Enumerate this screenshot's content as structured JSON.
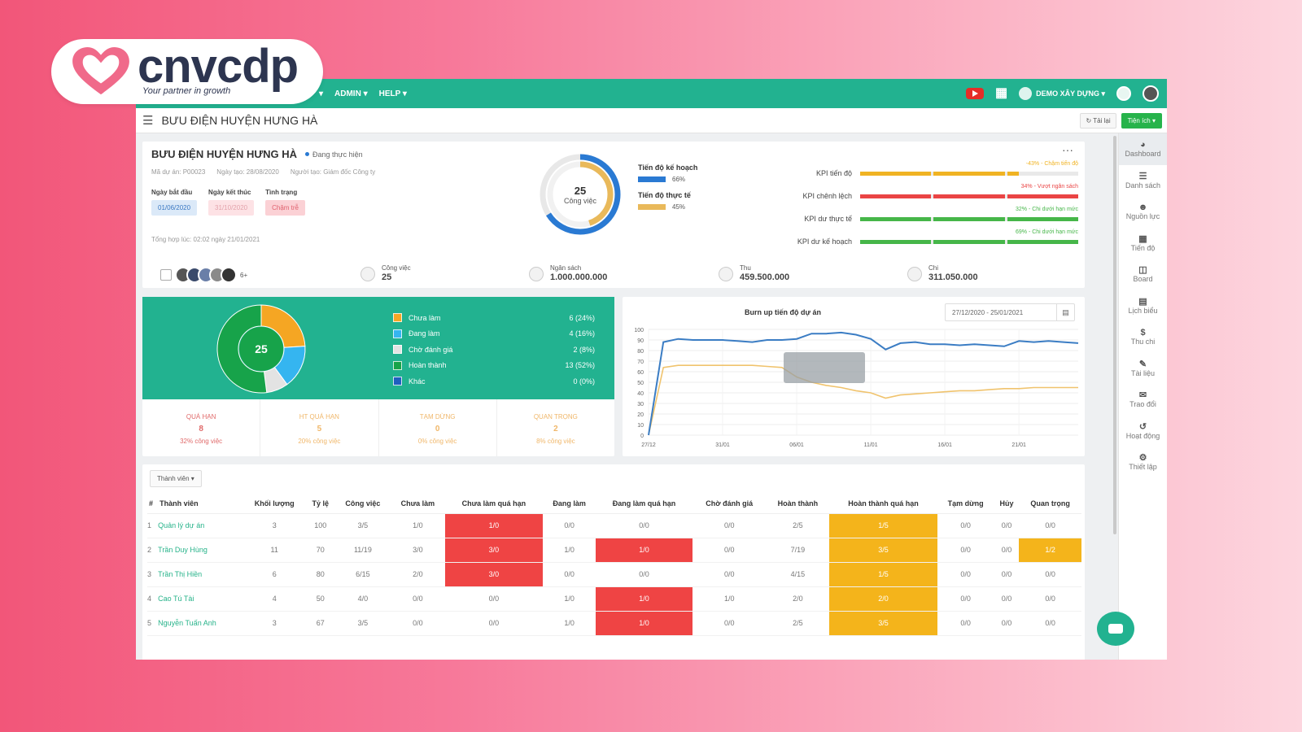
{
  "brand": {
    "name": "cnvcdp",
    "tagline": "Your partner in growth",
    "heart_color": "#f06a8a"
  },
  "topnav": {
    "items": [
      "▾",
      "ADMIN ▾",
      "HELP ▾"
    ],
    "project": "DEMO XÂY DỰNG ▾",
    "icons": [
      "youtube-icon",
      "apps-grid-icon",
      "project-icon",
      "globe-icon",
      "user-avatar-icon"
    ]
  },
  "subbar": {
    "title": "BƯU ĐIỆN HUYỆN HƯNG HÀ",
    "reload": "↻ Tải lại",
    "utility": "Tiện ích ▾"
  },
  "sidebar": [
    "Dashboard",
    "Danh sách",
    "Nguồn lực",
    "Tiến độ",
    "Board",
    "Lịch biểu",
    "Thu chi",
    "Tài liệu",
    "Trao đổi",
    "Hoạt động",
    "Thiết lập"
  ],
  "project": {
    "title": "BƯU ĐIỆN HUYỆN HƯNG HÀ",
    "status": "Đang thực hiện",
    "code": "Mã dự án: P00023",
    "created": "Ngày tạo: 28/08/2020",
    "creator": "Người tạo: Giám đốc Công ty",
    "start_label": "Ngày bắt đầu",
    "start": "01/06/2020",
    "end_label": "Ngày kết thúc",
    "end": "31/10/2020",
    "state_label": "Tình trạng",
    "state": "Chậm trễ",
    "synth": "Tổng hợp lúc: 02:02 ngày 21/01/2021",
    "tasks_total": "25",
    "tasks_unit": "Công việc",
    "plan_label": "Tiến độ kế hoạch",
    "plan_pct": "66%",
    "plan_value": 0.66,
    "actual_label": "Tiến độ thực tế",
    "actual_pct": "45%",
    "actual_value": 0.45,
    "plan_color": "#2a7ad3",
    "actual_color": "#e9b95a"
  },
  "kpis": [
    {
      "label": "KPI tiến độ",
      "note": "-43% - Chậm tiến độ",
      "color": "#f0b323",
      "value": 0.72
    },
    {
      "label": "KPI chênh lệch",
      "note": "34% - Vượt ngân sách",
      "color": "#ea4444",
      "value": 1.0
    },
    {
      "label": "KPI dư thực tế",
      "note": "32% - Chi dưới hạn mức",
      "color": "#46b649",
      "value": 1.0
    },
    {
      "label": "KPI dư kế hoạch",
      "note": "69% - Chi dưới hạn mức",
      "color": "#46b649",
      "value": 1.0
    }
  ],
  "stats": {
    "more": "6+",
    "tasks_label": "Công việc",
    "tasks_value": "25",
    "budget_label": "Ngân sách",
    "budget_value": "1.000.000.000",
    "income_label": "Thu",
    "income_value": "459.500.000",
    "expense_label": "Chi",
    "expense_value": "311.050.000"
  },
  "task_summary": {
    "total": "25",
    "legend": [
      {
        "label": "Chưa làm",
        "value": "6",
        "pct": "(24%)",
        "count": 6,
        "color": "#f5a623"
      },
      {
        "label": "Đang làm",
        "value": "4",
        "pct": "(16%)",
        "count": 4,
        "color": "#35b5f0"
      },
      {
        "label": "Chờ đánh giá",
        "value": "2",
        "pct": "(8%)",
        "count": 2,
        "color": "#e3e3e3"
      },
      {
        "label": "Hoàn thành",
        "value": "13",
        "pct": "(52%)",
        "count": 13,
        "color": "#17a34a"
      },
      {
        "label": "Khác",
        "value": "0",
        "pct": "(0%)",
        "count": 0,
        "color": "#1f5fbf"
      }
    ],
    "footer": [
      {
        "label": "QUÁ HẠN",
        "value": "8",
        "sub": "32% công việc",
        "color": "#e06a6a"
      },
      {
        "label": "HT QUÁ HẠN",
        "value": "5",
        "sub": "20% công việc",
        "color": "#f0b76a"
      },
      {
        "label": "TẠM DỪNG",
        "value": "0",
        "sub": "0% công việc",
        "color": "#f0b76a"
      },
      {
        "label": "QUAN TRỌNG",
        "value": "2",
        "sub": "8% công việc",
        "color": "#f0b76a"
      }
    ]
  },
  "burnup": {
    "title": "Burn up tiến độ dự án",
    "range": "27/12/2020 - 25/01/2021",
    "yticks": [
      "100",
      "90",
      "80",
      "70",
      "60",
      "50",
      "40",
      "30",
      "20",
      "10",
      "0"
    ],
    "xticks": [
      "27/12",
      "31/01",
      "06/01",
      "11/01",
      "16/01",
      "21/01"
    ]
  },
  "chart_data": {
    "type": "line",
    "title": "Burn up tiến độ dự án",
    "ylim": [
      0,
      100
    ],
    "x": [
      "27/12",
      "28/12",
      "29/12",
      "30/12",
      "31/12",
      "01/01",
      "02/01",
      "03/01",
      "04/01",
      "05/01",
      "06/01",
      "07/01",
      "08/01",
      "09/01",
      "10/01",
      "11/01",
      "12/01",
      "13/01",
      "14/01",
      "15/01",
      "16/01",
      "17/01",
      "18/01",
      "19/01",
      "20/01",
      "21/01",
      "22/01",
      "23/01",
      "24/01",
      "25/01"
    ],
    "series": [
      {
        "name": "",
        "color": "#3b7dc4",
        "values": [
          0,
          88,
          91,
          90,
          90,
          90,
          89,
          88,
          90,
          90,
          91,
          96,
          96,
          97,
          95,
          91,
          81,
          87,
          88,
          86,
          86,
          85,
          86,
          85,
          84,
          89,
          88,
          89,
          88,
          87
        ]
      },
      {
        "name": "",
        "color": "#f0c36d",
        "values": [
          0,
          64,
          66,
          66,
          66,
          66,
          66,
          66,
          65,
          64,
          55,
          50,
          47,
          45,
          42,
          40,
          35,
          38,
          39,
          40,
          41,
          42,
          42,
          43,
          44,
          44,
          45,
          45,
          45,
          45
        ]
      }
    ]
  },
  "members": {
    "filter": "Thành viên ▾",
    "headers": [
      "#",
      "Thành viên",
      "Khối lượng",
      "Tỷ lệ",
      "Công việc",
      "Chưa làm",
      "Chưa làm quá hạn",
      "Đang làm",
      "Đang làm quá hạn",
      "Chờ đánh giá",
      "Hoàn thành",
      "Hoàn thành quá hạn",
      "Tạm dừng",
      "Hủy",
      "Quan trọng"
    ],
    "rows": [
      [
        "1",
        "Quản lý dự án",
        "3",
        "100",
        "3/5",
        "1/0",
        "1/0",
        "0/0",
        "0/0",
        "0/0",
        "2/5",
        "1/5",
        "0/0",
        "0/0",
        "0/0"
      ],
      [
        "2",
        "Trần Duy Hùng",
        "11",
        "70",
        "11/19",
        "3/0",
        "3/0",
        "1/0",
        "1/0",
        "0/0",
        "7/19",
        "3/5",
        "0/0",
        "0/0",
        "1/2"
      ],
      [
        "3",
        "Trần Thị Hiền",
        "6",
        "80",
        "6/15",
        "2/0",
        "3/0",
        "0/0",
        "0/0",
        "0/0",
        "4/15",
        "1/5",
        "0/0",
        "0/0",
        "0/0"
      ],
      [
        "4",
        "Cao Tú Tài",
        "4",
        "50",
        "4/0",
        "0/0",
        "0/0",
        "1/0",
        "1/0",
        "1/0",
        "2/0",
        "2/0",
        "0/0",
        "0/0",
        "0/0"
      ],
      [
        "5",
        "Nguyễn Tuấn Anh",
        "3",
        "67",
        "3/5",
        "0/0",
        "0/0",
        "1/0",
        "1/0",
        "0/0",
        "2/5",
        "3/5",
        "0/0",
        "0/0",
        "0/0"
      ]
    ],
    "highlight": {
      "6": "red",
      "8": "red",
      "11": "amber"
    }
  }
}
